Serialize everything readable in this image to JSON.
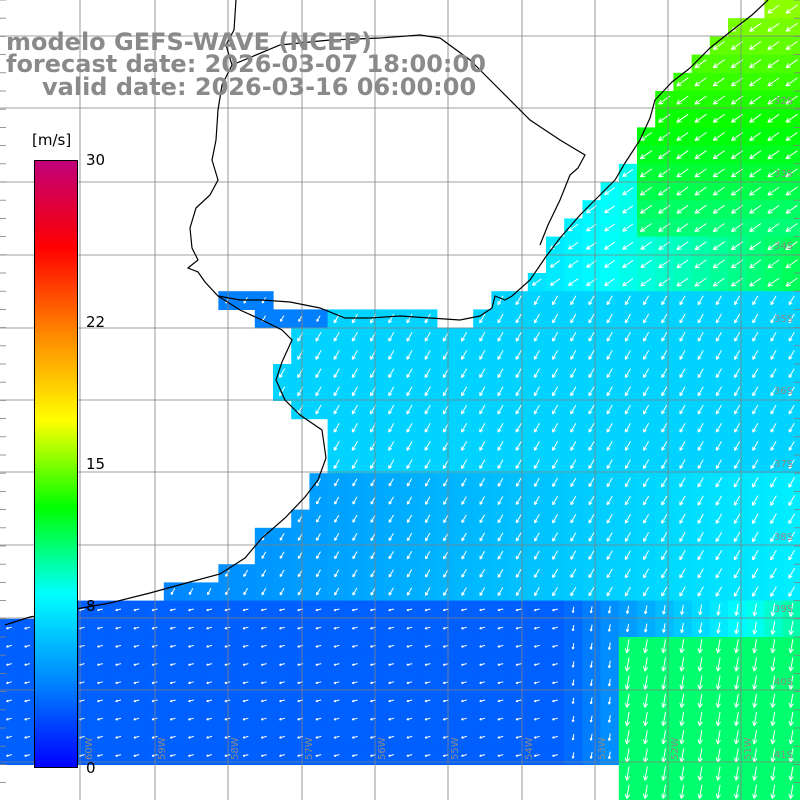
{
  "title": {
    "line1": "modelo GEFS-WAVE (NCEP)",
    "line2": "forecast date: 2026-03-07 18:00:00",
    "line3": "valid date: 2026-03-16 06:00:00"
  },
  "colorbar": {
    "unit": "[m/s]",
    "min": 0,
    "max": 30,
    "ticks": [
      {
        "value": 30,
        "label": "30"
      },
      {
        "value": 22,
        "label": "22"
      },
      {
        "value": 15,
        "label": "15"
      },
      {
        "value": 8,
        "label": "8"
      },
      {
        "value": 0,
        "label": "0"
      }
    ],
    "gradient": [
      "#0000ff",
      "#0088ff",
      "#00ffff",
      "#00ff00",
      "#ffff00",
      "#ff8800",
      "#ff0000",
      "#c0007a"
    ]
  },
  "lat_labels": [
    "32S",
    "33S",
    "34S",
    "35S",
    "36S",
    "37S",
    "38S",
    "39S",
    "40S",
    "41S"
  ],
  "lon_labels": [
    "60W",
    "59W",
    "58W",
    "57W",
    "56W",
    "55W",
    "54W",
    "53W",
    "52W",
    "51W"
  ],
  "colors": {
    "grid": "#808080",
    "coast": "#000000",
    "arrow": "#ffffff",
    "axis_label": "#8a8a8a"
  }
}
